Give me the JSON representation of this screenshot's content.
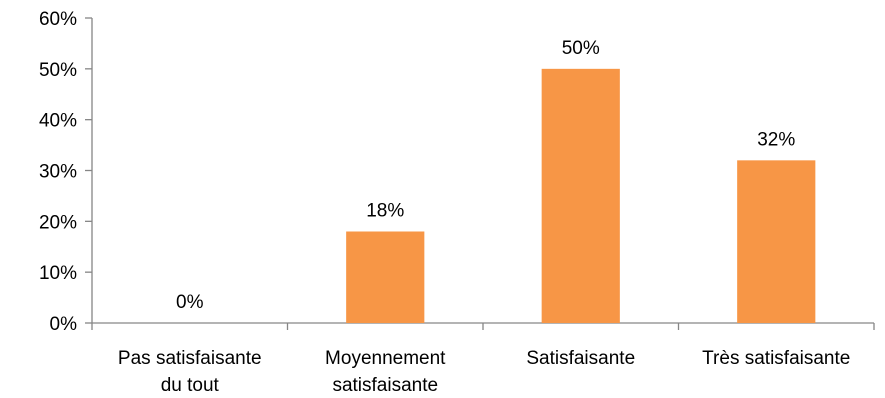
{
  "chart_data": {
    "type": "bar",
    "categories": [
      [
        "Pas satisfaisante",
        "du tout"
      ],
      [
        "Moyennement",
        "satisfaisante"
      ],
      [
        "Satisfaisante"
      ],
      [
        "Très satisfaisante"
      ]
    ],
    "values": [
      0,
      18,
      50,
      32
    ],
    "data_labels": [
      "0%",
      "18%",
      "50%",
      "32%"
    ],
    "y_ticks": [
      0,
      10,
      20,
      30,
      40,
      50,
      60
    ],
    "y_tick_labels": [
      "0%",
      "10%",
      "20%",
      "30%",
      "40%",
      "50%",
      "60%"
    ],
    "ylim": [
      0,
      60
    ],
    "grid": false,
    "legend": "none",
    "bar_color": "#F79646",
    "axis_color": "#868686"
  }
}
